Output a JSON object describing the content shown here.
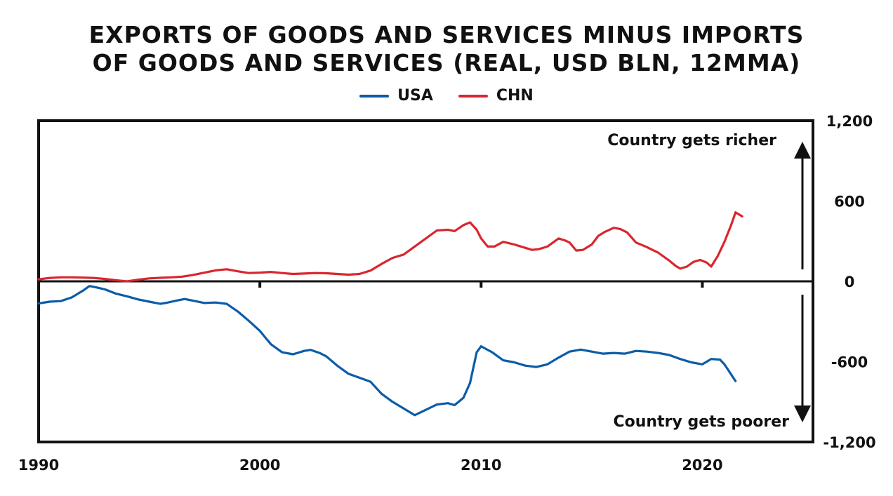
{
  "chart_data": {
    "type": "line",
    "title_lines": [
      "EXPORTS OF GOODS AND SERVICES MINUS IMPORTS",
      "OF GOODS AND SERVICES (REAL, USD BLN, 12MMA)"
    ],
    "xlim": [
      1990,
      2025
    ],
    "ylim": [
      -1200,
      1200
    ],
    "x_ticks": [
      1990,
      2000,
      2010,
      2020
    ],
    "y_ticks": [
      1200,
      600,
      0,
      -600,
      -1200
    ],
    "y_tick_labels": [
      "1,200",
      "600",
      "0",
      "-600",
      "-1,200"
    ],
    "annotations": {
      "up": "Country gets richer",
      "down": "Country gets poorer"
    },
    "colors": {
      "USA": "#0b5ca8",
      "CHN": "#d9262e"
    },
    "series": [
      {
        "name": "USA",
        "points": [
          [
            1990.0,
            -165
          ],
          [
            1990.5,
            -152
          ],
          [
            1991.0,
            -148
          ],
          [
            1991.5,
            -120
          ],
          [
            1992.0,
            -70
          ],
          [
            1992.3,
            -35
          ],
          [
            1992.6,
            -45
          ],
          [
            1993.0,
            -60
          ],
          [
            1993.5,
            -92
          ],
          [
            1994.0,
            -112
          ],
          [
            1994.5,
            -135
          ],
          [
            1995.0,
            -152
          ],
          [
            1995.5,
            -168
          ],
          [
            1995.8,
            -160
          ],
          [
            1996.2,
            -145
          ],
          [
            1996.6,
            -132
          ],
          [
            1997.0,
            -145
          ],
          [
            1997.5,
            -162
          ],
          [
            1998.0,
            -158
          ],
          [
            1998.5,
            -168
          ],
          [
            1999.0,
            -225
          ],
          [
            1999.5,
            -295
          ],
          [
            2000.0,
            -370
          ],
          [
            2000.5,
            -470
          ],
          [
            2001.0,
            -530
          ],
          [
            2001.5,
            -545
          ],
          [
            2002.0,
            -520
          ],
          [
            2002.3,
            -512
          ],
          [
            2002.7,
            -535
          ],
          [
            2003.0,
            -560
          ],
          [
            2003.5,
            -630
          ],
          [
            2004.0,
            -690
          ],
          [
            2004.5,
            -720
          ],
          [
            2005.0,
            -750
          ],
          [
            2005.5,
            -840
          ],
          [
            2006.0,
            -900
          ],
          [
            2006.5,
            -950
          ],
          [
            2007.0,
            -1000
          ],
          [
            2007.5,
            -960
          ],
          [
            2008.0,
            -920
          ],
          [
            2008.5,
            -910
          ],
          [
            2008.8,
            -925
          ],
          [
            2009.2,
            -870
          ],
          [
            2009.5,
            -760
          ],
          [
            2009.8,
            -530
          ],
          [
            2010.0,
            -485
          ],
          [
            2010.5,
            -530
          ],
          [
            2011.0,
            -590
          ],
          [
            2011.5,
            -605
          ],
          [
            2012.0,
            -630
          ],
          [
            2012.5,
            -640
          ],
          [
            2013.0,
            -620
          ],
          [
            2013.5,
            -570
          ],
          [
            2014.0,
            -525
          ],
          [
            2014.5,
            -510
          ],
          [
            2015.0,
            -525
          ],
          [
            2015.5,
            -540
          ],
          [
            2016.0,
            -535
          ],
          [
            2016.5,
            -540
          ],
          [
            2017.0,
            -520
          ],
          [
            2017.5,
            -525
          ],
          [
            2018.0,
            -535
          ],
          [
            2018.5,
            -550
          ],
          [
            2019.0,
            -580
          ],
          [
            2019.5,
            -605
          ],
          [
            2020.0,
            -620
          ],
          [
            2020.4,
            -580
          ],
          [
            2020.8,
            -585
          ],
          [
            2021.0,
            -620
          ],
          [
            2021.5,
            -745
          ]
        ]
      },
      {
        "name": "CHN",
        "points": [
          [
            1990.0,
            15
          ],
          [
            1990.5,
            25
          ],
          [
            1991.0,
            30
          ],
          [
            1991.5,
            30
          ],
          [
            1992.0,
            28
          ],
          [
            1992.5,
            25
          ],
          [
            1993.0,
            18
          ],
          [
            1993.5,
            8
          ],
          [
            1994.0,
            0
          ],
          [
            1994.5,
            12
          ],
          [
            1995.0,
            22
          ],
          [
            1995.5,
            26
          ],
          [
            1996.0,
            30
          ],
          [
            1996.5,
            35
          ],
          [
            1997.0,
            48
          ],
          [
            1997.5,
            65
          ],
          [
            1998.0,
            82
          ],
          [
            1998.5,
            90
          ],
          [
            1999.0,
            75
          ],
          [
            1999.5,
            62
          ],
          [
            2000.0,
            65
          ],
          [
            2000.5,
            70
          ],
          [
            2001.0,
            62
          ],
          [
            2001.5,
            55
          ],
          [
            2002.0,
            58
          ],
          [
            2002.5,
            62
          ],
          [
            2003.0,
            60
          ],
          [
            2003.5,
            55
          ],
          [
            2004.0,
            50
          ],
          [
            2004.5,
            55
          ],
          [
            2005.0,
            80
          ],
          [
            2005.5,
            130
          ],
          [
            2006.0,
            175
          ],
          [
            2006.5,
            200
          ],
          [
            2007.0,
            260
          ],
          [
            2007.5,
            320
          ],
          [
            2008.0,
            380
          ],
          [
            2008.5,
            385
          ],
          [
            2008.8,
            375
          ],
          [
            2009.2,
            420
          ],
          [
            2009.5,
            440
          ],
          [
            2009.8,
            385
          ],
          [
            2010.0,
            320
          ],
          [
            2010.3,
            260
          ],
          [
            2010.6,
            260
          ],
          [
            2011.0,
            295
          ],
          [
            2011.5,
            275
          ],
          [
            2012.0,
            250
          ],
          [
            2012.3,
            235
          ],
          [
            2012.6,
            240
          ],
          [
            2013.0,
            260
          ],
          [
            2013.5,
            320
          ],
          [
            2013.8,
            305
          ],
          [
            2014.0,
            290
          ],
          [
            2014.3,
            230
          ],
          [
            2014.6,
            235
          ],
          [
            2015.0,
            275
          ],
          [
            2015.3,
            340
          ],
          [
            2015.6,
            370
          ],
          [
            2016.0,
            400
          ],
          [
            2016.3,
            390
          ],
          [
            2016.6,
            365
          ],
          [
            2017.0,
            290
          ],
          [
            2017.5,
            255
          ],
          [
            2017.8,
            230
          ],
          [
            2018.0,
            215
          ],
          [
            2018.5,
            155
          ],
          [
            2018.8,
            115
          ],
          [
            2019.0,
            95
          ],
          [
            2019.3,
            110
          ],
          [
            2019.6,
            145
          ],
          [
            2019.9,
            160
          ],
          [
            2020.2,
            140
          ],
          [
            2020.4,
            110
          ],
          [
            2020.7,
            190
          ],
          [
            2021.0,
            295
          ],
          [
            2021.3,
            420
          ],
          [
            2021.5,
            515
          ],
          [
            2021.8,
            485
          ]
        ]
      }
    ]
  }
}
